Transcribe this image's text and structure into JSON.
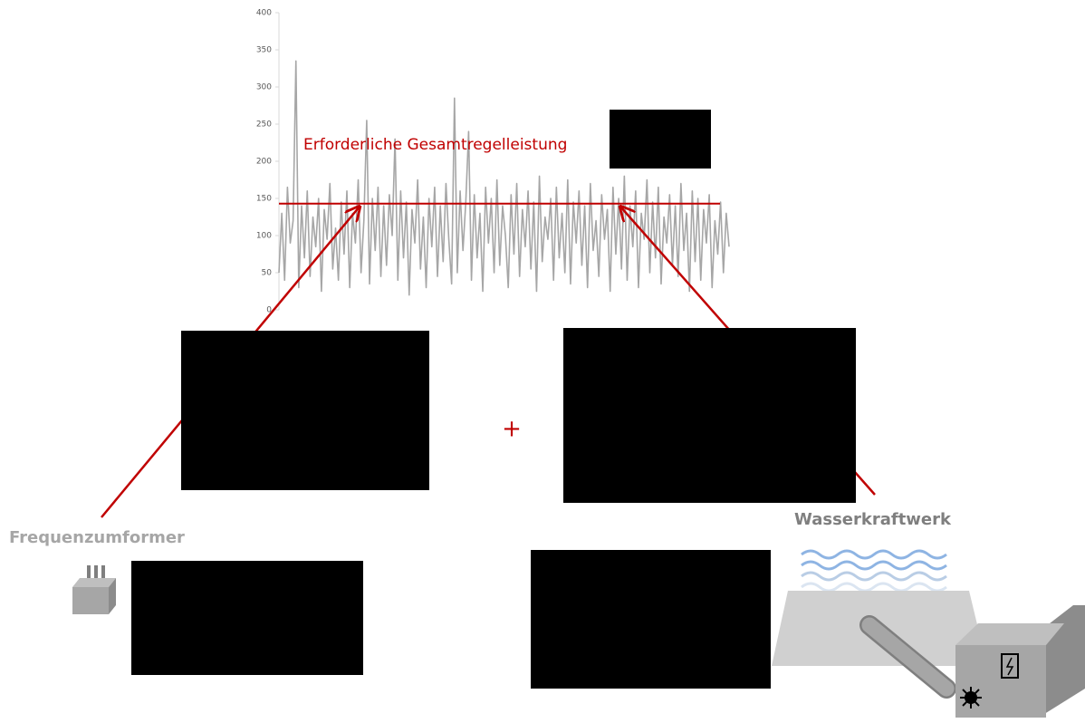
{
  "chart_data": {
    "type": "line",
    "ylim": [
      0,
      400
    ],
    "yticks": [
      0,
      50,
      100,
      150,
      200,
      250,
      300,
      350,
      400
    ],
    "color": "#a6a6a6",
    "values": [
      50,
      130,
      40,
      165,
      90,
      120,
      335,
      30,
      140,
      70,
      160,
      45,
      125,
      85,
      150,
      25,
      135,
      95,
      170,
      55,
      110,
      40,
      145,
      75,
      160,
      30,
      130,
      90,
      175,
      50,
      120,
      255,
      35,
      150,
      80,
      165,
      45,
      140,
      60,
      155,
      100,
      230,
      40,
      160,
      70,
      145,
      20,
      135,
      90,
      175,
      55,
      125,
      30,
      150,
      85,
      165,
      45,
      140,
      65,
      170,
      95,
      35,
      285,
      50,
      160,
      80,
      145,
      240,
      40,
      155,
      70,
      130,
      25,
      165,
      90,
      150,
      50,
      175,
      60,
      140,
      100,
      30,
      155,
      75,
      170,
      45,
      135,
      85,
      160,
      55,
      145,
      25,
      180,
      65,
      125,
      95,
      150,
      40,
      165,
      70,
      130,
      50,
      175,
      35,
      145,
      90,
      160,
      60,
      140,
      30,
      170,
      80,
      120,
      45,
      155,
      95,
      135,
      25,
      165,
      75,
      150,
      55,
      180,
      40,
      140,
      85,
      160,
      30,
      130,
      95,
      175,
      50,
      145,
      70,
      165,
      35,
      125,
      90,
      155,
      60,
      140,
      45,
      170,
      80,
      130,
      25,
      160,
      65,
      150,
      40,
      135,
      90,
      155,
      30,
      120,
      75,
      145,
      50,
      130,
      85
    ],
    "threshold": 143,
    "threshold_color": "#c00000",
    "annotation": "Erforderliche Gesamtregelleistung"
  },
  "labels": {
    "operator": "+",
    "left": "Frequenzumformer",
    "right": "Wasserkraftwerk"
  }
}
